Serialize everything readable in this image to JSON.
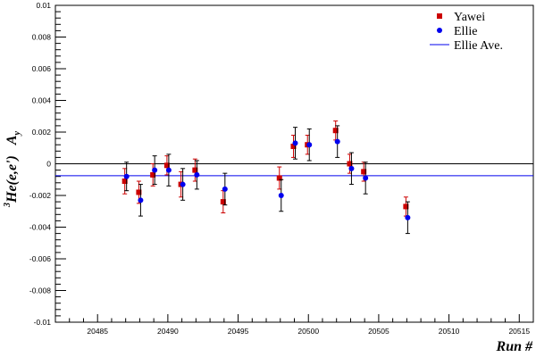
{
  "chart_data": {
    "type": "scatter",
    "title": "",
    "xlabel": "Run #",
    "ylabel_prefix": "3",
    "ylabel_main": "He(e,e')",
    "ylabel_A": "A",
    "ylabel_sub": "y",
    "xlim": [
      20482,
      20516
    ],
    "ylim": [
      -0.01,
      0.01
    ],
    "x_ticks": [
      20485,
      20490,
      20495,
      20500,
      20505,
      20510,
      20515
    ],
    "y_ticks": [
      -0.01,
      -0.008,
      -0.006,
      -0.004,
      -0.002,
      0,
      0.002,
      0.004,
      0.006,
      0.008,
      0.01
    ],
    "x_tick_labels": [
      "20485",
      "20490",
      "20495",
      "20500",
      "20505",
      "20510",
      "20515"
    ],
    "y_tick_labels": [
      "-0.01",
      "-0.008",
      "-0.006",
      "-0.004",
      "-0.002",
      "0",
      "0.002",
      "0.004",
      "0.006",
      "0.008",
      "0.01"
    ],
    "grid": false,
    "legend_position": "top-right",
    "zero_line": 0,
    "series": [
      {
        "name": "Yawei",
        "marker": "square",
        "color": "#cc0000",
        "error_color": "#cc0000",
        "x": [
          20487,
          20488,
          20489,
          20490,
          20491,
          20492,
          20494,
          20498,
          20499,
          20500,
          20502,
          20503,
          20504,
          20507
        ],
        "y": [
          -0.0011,
          -0.0018,
          -0.0007,
          -0.0001,
          -0.0013,
          -0.0004,
          -0.0024,
          -0.0009,
          0.0011,
          0.0012,
          0.0021,
          0.0,
          -0.0005,
          -0.0027
        ],
        "err": [
          0.0008,
          0.0007,
          0.0007,
          0.0006,
          0.0008,
          0.0007,
          0.0007,
          0.0007,
          0.0007,
          0.0006,
          0.0006,
          0.0006,
          0.0006,
          0.0006
        ]
      },
      {
        "name": "Ellie",
        "marker": "star",
        "color": "#0000ee",
        "error_color": "#000000",
        "x": [
          20487,
          20488,
          20489,
          20490,
          20491,
          20492,
          20494,
          20498,
          20499,
          20500,
          20502,
          20503,
          20504,
          20507
        ],
        "y": [
          -0.0008,
          -0.0023,
          -0.0004,
          -0.0004,
          -0.0013,
          -0.0007,
          -0.0016,
          -0.002,
          0.0013,
          0.0012,
          0.0014,
          -0.0003,
          -0.0009,
          -0.0034
        ],
        "err": [
          0.0009,
          0.001,
          0.0009,
          0.001,
          0.001,
          0.0009,
          0.001,
          0.001,
          0.001,
          0.001,
          0.001,
          0.001,
          0.001,
          0.001
        ]
      }
    ],
    "average_line": {
      "name": "Ellie Ave.",
      "y": -0.00075,
      "color": "#0000ee"
    }
  }
}
